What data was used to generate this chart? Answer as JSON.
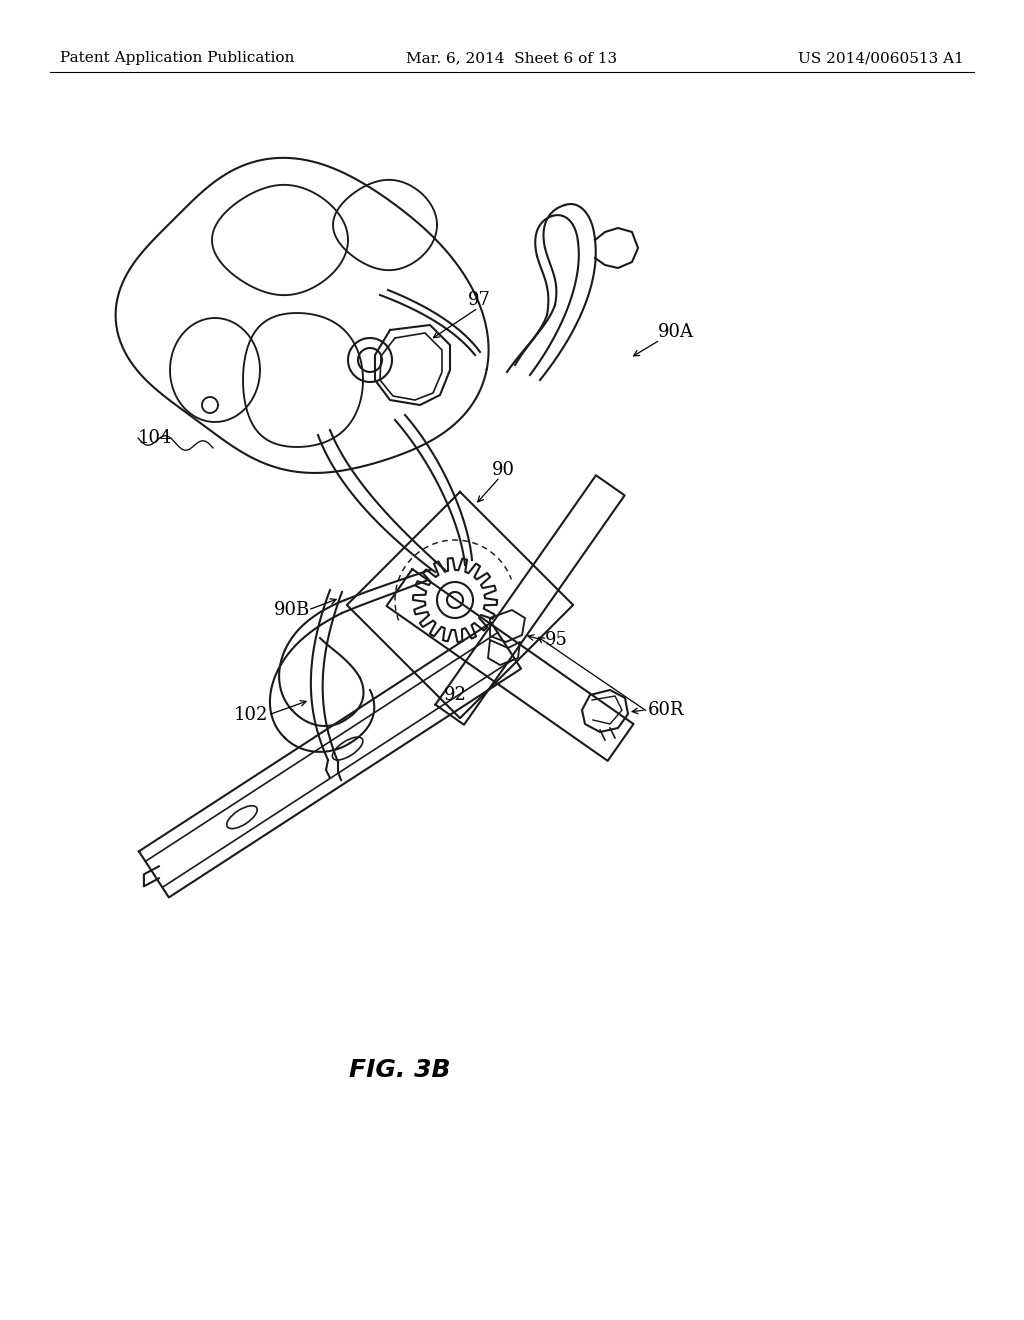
{
  "background_color": "#ffffff",
  "header_left": "Patent Application Publication",
  "header_center": "Mar. 6, 2014  Sheet 6 of 13",
  "header_right": "US 2014/0060513 A1",
  "figure_label": "FIG. 3B",
  "line_color": "#1a1a1a",
  "line_width": 1.5,
  "header_fontsize": 11,
  "label_fontsize": 13,
  "fig_label_fontsize": 18
}
